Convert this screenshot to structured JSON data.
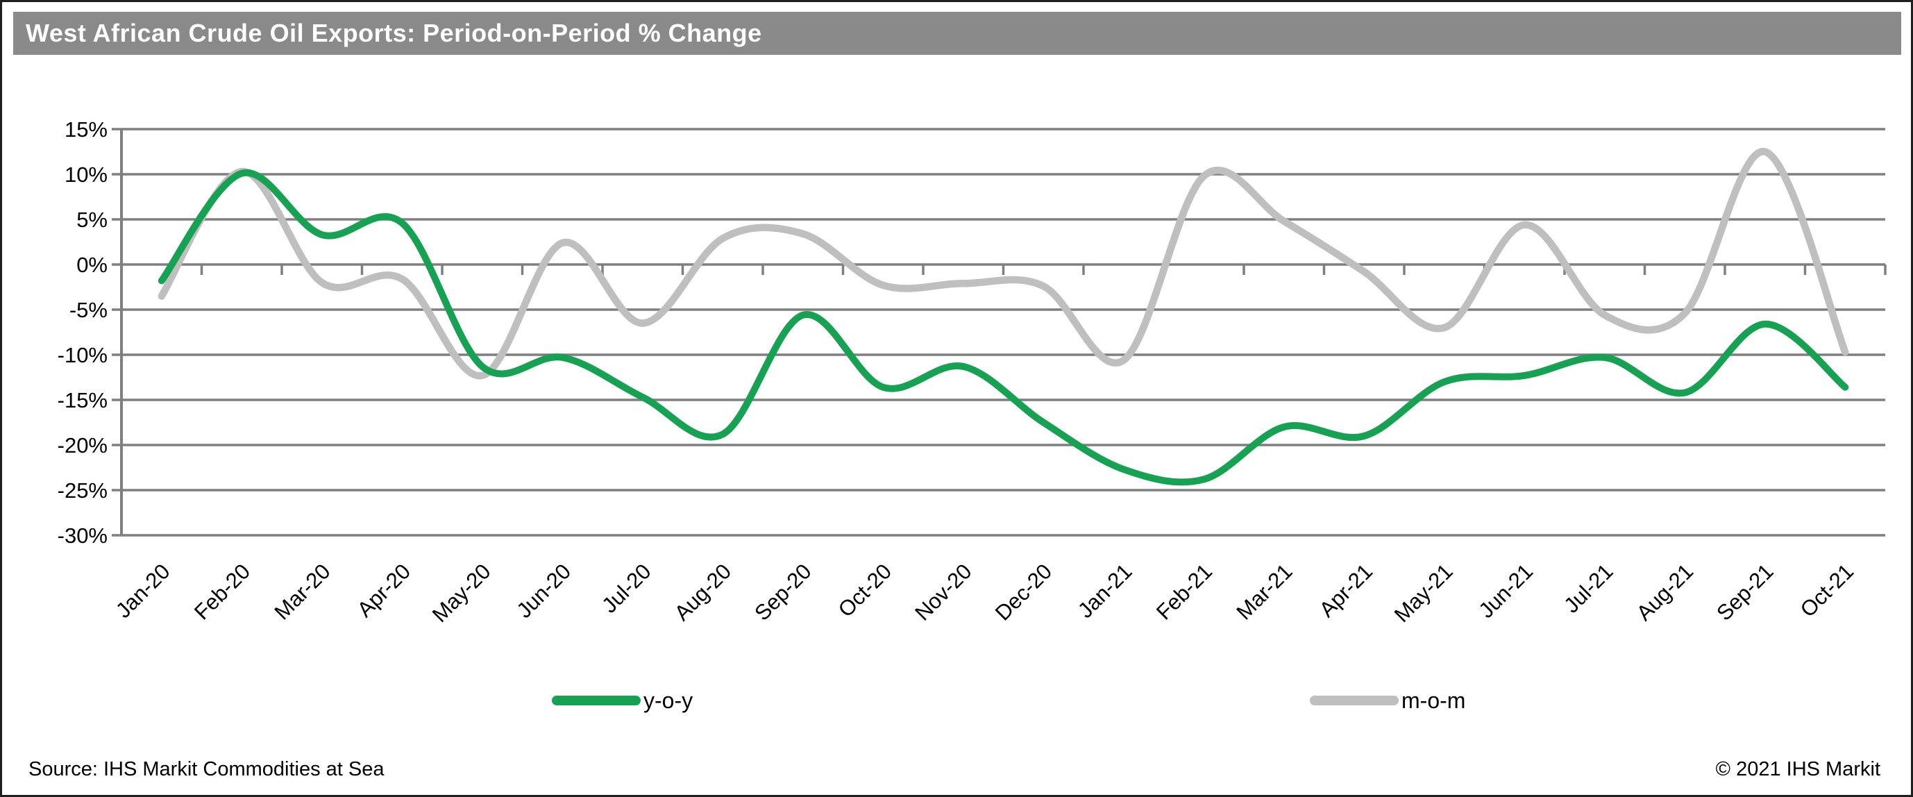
{
  "header": {
    "title": "West African Crude Oil Exports: Period-on-Period % Change"
  },
  "chart_data": {
    "type": "line",
    "title": "West African Crude Oil Exports: Period-on-Period % Change",
    "categories": [
      "Jan-20",
      "Feb-20",
      "Mar-20",
      "Apr-20",
      "May-20",
      "Jun-20",
      "Jul-20",
      "Aug-20",
      "Sep-20",
      "Oct-20",
      "Nov-20",
      "Dec-20",
      "Jan-21",
      "Feb-21",
      "Mar-21",
      "Apr-21",
      "May-21",
      "Jun-21",
      "Jul-21",
      "Aug-21",
      "Sep-21",
      "Oct-21"
    ],
    "series": [
      {
        "name": "y-o-y",
        "color": "#17a253",
        "values": [
          -1.8,
          10.1,
          3.3,
          4.6,
          -11.3,
          -10.3,
          -14.7,
          -18.8,
          -5.6,
          -13.6,
          -11.3,
          -17.5,
          -22.7,
          -23.8,
          -18.0,
          -19.0,
          -13.0,
          -12.3,
          -10.3,
          -14.2,
          -6.6,
          -13.6
        ]
      },
      {
        "name": "m-o-m",
        "color": "#bfbfbf",
        "values": [
          -3.5,
          10.3,
          -2.0,
          -1.6,
          -12.3,
          2.4,
          -6.5,
          2.9,
          3.4,
          -2.3,
          -2.1,
          -2.4,
          -10.6,
          9.8,
          4.8,
          -0.8,
          -7.0,
          4.4,
          -5.6,
          -5.4,
          12.5,
          -9.7
        ]
      }
    ],
    "ylim": [
      -30,
      15
    ],
    "y_ticks": [
      "15%",
      "10%",
      "5%",
      "0%",
      "-5%",
      "-10%",
      "-15%",
      "-20%",
      "-25%",
      "-30%"
    ],
    "y_tick_values": [
      15,
      10,
      5,
      0,
      -5,
      -10,
      -15,
      -20,
      -25,
      -30
    ],
    "xlabel": "",
    "ylabel": "",
    "grid": true,
    "legend_position": "bottom"
  },
  "legend": {
    "items": [
      {
        "label": "y-o-y",
        "color": "#17a253"
      },
      {
        "label": "m-o-m",
        "color": "#bfbfbf"
      }
    ]
  },
  "footer": {
    "source": "Source: IHS Markit Commodities at Sea",
    "copyright": "© 2021 IHS Markit"
  },
  "colors": {
    "title_bar_bg": "#8a8a8a",
    "title_text": "#ffffff",
    "gridline": "#7f7f7f",
    "axis": "#7f7f7f",
    "yoy_line": "#17a253",
    "mom_line": "#bfbfbf",
    "frame": "#1f1f1f",
    "background": "#ffffff"
  }
}
